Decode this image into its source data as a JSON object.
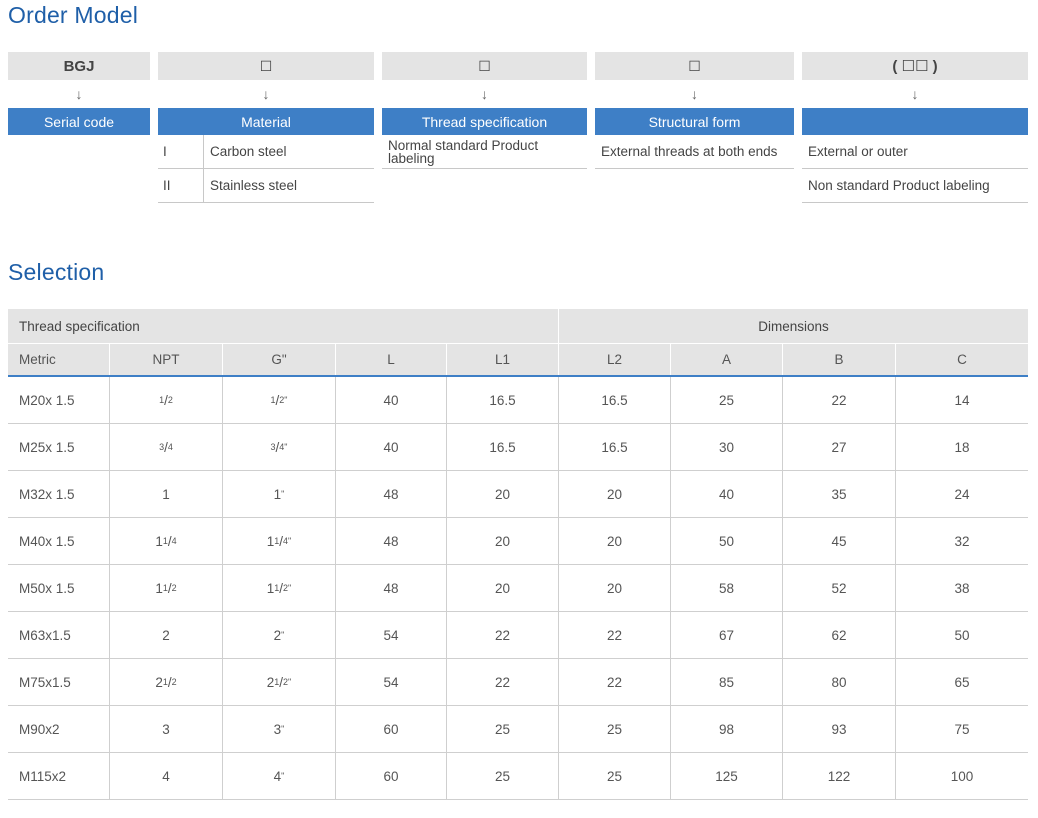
{
  "order_model": {
    "title": "Order Model",
    "arrow": "↓",
    "columns": [
      {
        "code": "BGJ",
        "header": "Serial code"
      },
      {
        "code": "☐",
        "header": "Material",
        "rows": [
          {
            "num": "I",
            "text": "Carbon steel"
          },
          {
            "num": "II",
            "text": "Stainless steel"
          }
        ]
      },
      {
        "code": "☐",
        "header": "Thread specification",
        "rows": [
          "Normal standard Product labeling"
        ]
      },
      {
        "code": "☐",
        "header": "Structural form",
        "rows": [
          "External threads at both ends"
        ]
      },
      {
        "code": "( ☐☐ )",
        "header": "",
        "rows": [
          "External or outer",
          "Non standard Product labeling"
        ]
      }
    ]
  },
  "selection": {
    "title": "Selection",
    "group_headers": {
      "thread": "Thread specification",
      "dimensions": "Dimensions"
    },
    "columns": [
      "Metric",
      "NPT",
      "G\"",
      "L",
      "L1",
      "L2",
      "A",
      "B",
      "C"
    ],
    "rows": [
      {
        "metric": "M20x 1.5",
        "npt": {
          "w": "",
          "n": "1",
          "d": "2"
        },
        "g": {
          "w": "",
          "n": "1",
          "d": "2",
          "s": "\""
        },
        "L": "40",
        "L1": "16.5",
        "L2": "16.5",
        "A": "25",
        "B": "22",
        "C": "14"
      },
      {
        "metric": "M25x 1.5",
        "npt": {
          "w": "",
          "n": "3",
          "d": "4"
        },
        "g": {
          "w": "",
          "n": "3",
          "d": "4",
          "s": "\""
        },
        "L": "40",
        "L1": "16.5",
        "L2": "16.5",
        "A": "30",
        "B": "27",
        "C": "18"
      },
      {
        "metric": "M32x 1.5",
        "npt": {
          "w": "1"
        },
        "g": {
          "w": "1",
          "s": "\""
        },
        "L": "48",
        "L1": "20",
        "L2": "20",
        "A": "40",
        "B": "35",
        "C": "24"
      },
      {
        "metric": "M40x 1.5",
        "npt": {
          "w": "1",
          "n": "1",
          "d": "4"
        },
        "g": {
          "w": "1",
          "n": "1",
          "d": "4",
          "s": "\""
        },
        "L": "48",
        "L1": "20",
        "L2": "20",
        "A": "50",
        "B": "45",
        "C": "32"
      },
      {
        "metric": "M50x 1.5",
        "npt": {
          "w": "1",
          "n": "1",
          "d": "2"
        },
        "g": {
          "w": "1",
          "n": "1",
          "d": "2",
          "s": "\""
        },
        "L": "48",
        "L1": "20",
        "L2": "20",
        "A": "58",
        "B": "52",
        "C": "38"
      },
      {
        "metric": "M63x1.5",
        "npt": {
          "w": "2"
        },
        "g": {
          "w": "2",
          "s": "\""
        },
        "L": "54",
        "L1": "22",
        "L2": "22",
        "A": "67",
        "B": "62",
        "C": "50"
      },
      {
        "metric": "M75x1.5",
        "npt": {
          "w": "2",
          "n": "1",
          "d": "2"
        },
        "g": {
          "w": "2",
          "n": "1",
          "d": "2",
          "s": "\""
        },
        "L": "54",
        "L1": "22",
        "L2": "22",
        "A": "85",
        "B": "80",
        "C": "65"
      },
      {
        "metric": "M90x2",
        "npt": {
          "w": "3"
        },
        "g": {
          "w": "3",
          "s": "\""
        },
        "L": "60",
        "L1": "25",
        "L2": "25",
        "A": "98",
        "B": "93",
        "C": "75"
      },
      {
        "metric": "M115x2",
        "npt": {
          "w": "4"
        },
        "g": {
          "w": "4",
          "s": "\""
        },
        "L": "60",
        "L1": "25",
        "L2": "25",
        "A": "125",
        "B": "122",
        "C": "100"
      }
    ]
  }
}
